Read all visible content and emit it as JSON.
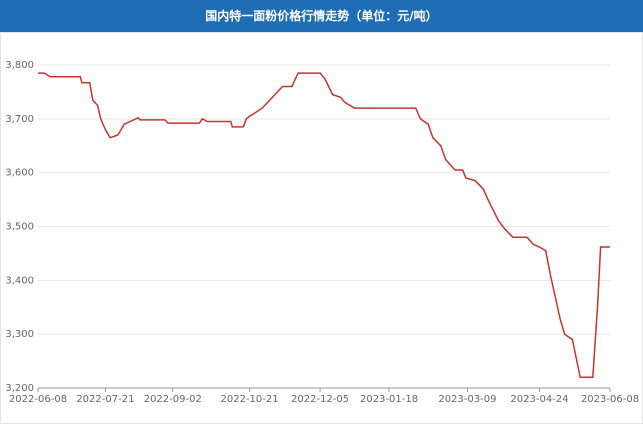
{
  "chart_data": {
    "type": "line",
    "title": "国内特一面粉价格行情走势（单位：元/吨）",
    "x": [
      "2022-06-08",
      "2022-06-12",
      "2022-06-16",
      "2022-07-05",
      "2022-07-06",
      "2022-07-11",
      "2022-07-13",
      "2022-07-16",
      "2022-07-18",
      "2022-07-21",
      "2022-07-24",
      "2022-07-29",
      "2022-08-02",
      "2022-08-11",
      "2022-08-12",
      "2022-08-28",
      "2022-08-30",
      "2022-09-09",
      "2022-09-19",
      "2022-09-21",
      "2022-09-24",
      "2022-10-09",
      "2022-10-10",
      "2022-10-17",
      "2022-10-19",
      "2022-10-21",
      "2022-10-24",
      "2022-10-29",
      "2022-11-03",
      "2022-11-11",
      "2022-11-17",
      "2022-11-21",
      "2022-12-05",
      "2022-12-08",
      "2022-12-13",
      "2022-12-18",
      "2022-12-21",
      "2022-12-27",
      "2023-01-22",
      "2023-02-04",
      "2023-02-07",
      "2023-02-12",
      "2023-02-15",
      "2023-02-20",
      "2023-02-23",
      "2023-03-01",
      "2023-03-06",
      "2023-03-08",
      "2023-03-14",
      "2023-03-19",
      "2023-03-23",
      "2023-03-29",
      "2023-04-02",
      "2023-04-07",
      "2023-04-16",
      "2023-04-20",
      "2023-04-24",
      "2023-04-28",
      "2023-05-01",
      "2023-05-04",
      "2023-05-07",
      "2023-05-10",
      "2023-05-15",
      "2023-05-20",
      "2023-05-28",
      "2023-05-31",
      "2023-06-02",
      "2023-06-08"
    ],
    "series": [
      {
        "name": "特一面粉",
        "color": "#c23531",
        "values": [
          3785,
          3785,
          3778,
          3778,
          3767,
          3767,
          3735,
          3725,
          3700,
          3680,
          3665,
          3670,
          3690,
          3702,
          3698,
          3698,
          3692,
          3692,
          3692,
          3700,
          3695,
          3695,
          3685,
          3685,
          3700,
          3705,
          3710,
          3720,
          3735,
          3760,
          3760,
          3785,
          3785,
          3775,
          3745,
          3740,
          3730,
          3720,
          3720,
          3720,
          3700,
          3690,
          3665,
          3650,
          3625,
          3605,
          3605,
          3590,
          3585,
          3570,
          3545,
          3510,
          3495,
          3480,
          3480,
          3467,
          3462,
          3455,
          3410,
          3370,
          3330,
          3300,
          3290,
          3220,
          3220,
          3350,
          3462,
          3462
        ]
      }
    ],
    "xlim": [
      "2022-06-08",
      "2023-06-08"
    ],
    "xticks": [
      "2022-06-08",
      "2022-07-21",
      "2022-09-02",
      "2022-10-21",
      "2022-12-05",
      "2023-01-18",
      "2023-03-09",
      "2023-04-24",
      "2023-06-08"
    ],
    "ylim": [
      3200,
      3800
    ],
    "yticks": [
      {
        "value": 3200,
        "label": "3,200"
      },
      {
        "value": 3300,
        "label": "3,300"
      },
      {
        "value": 3400,
        "label": "3,400"
      },
      {
        "value": 3500,
        "label": "3,500"
      },
      {
        "value": 3600,
        "label": "3,600"
      },
      {
        "value": 3700,
        "label": "3,700"
      },
      {
        "value": 3800,
        "label": "3,800"
      }
    ],
    "grid": true
  }
}
